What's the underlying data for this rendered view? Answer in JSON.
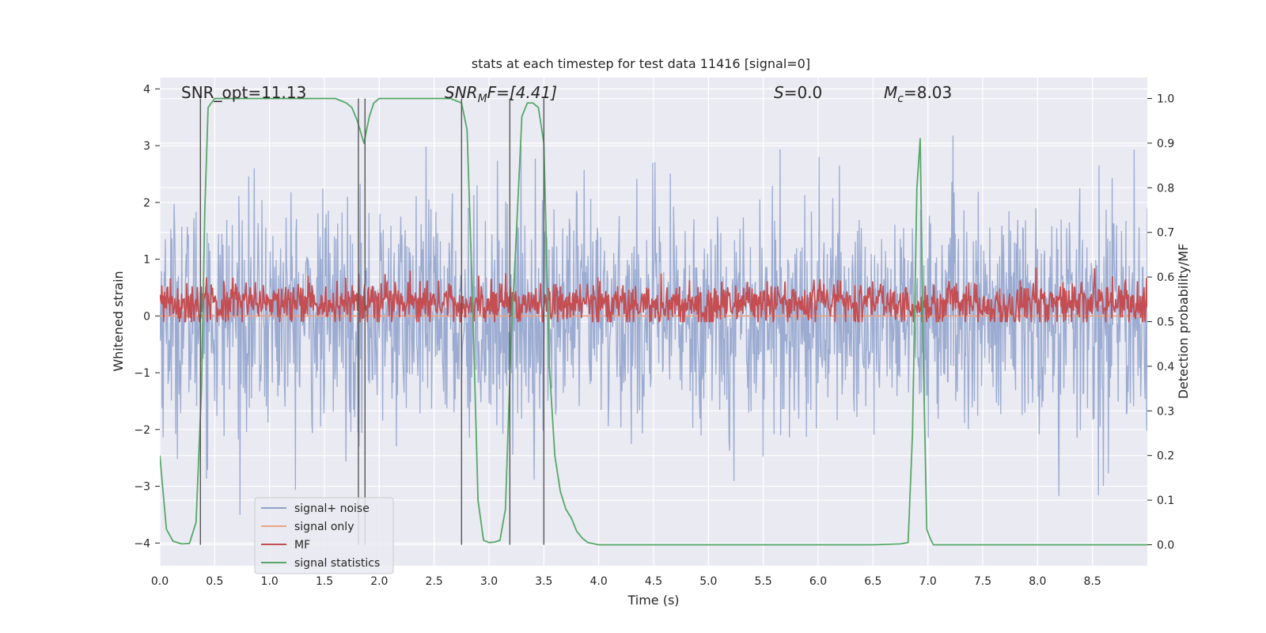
{
  "chart_data": {
    "type": "line",
    "title": "stats at each timestep for test data 11416 [signal=0]",
    "xlabel": "Time (s)",
    "ylabel": "Whitened strain",
    "ylabel_right": "Detection probability/MF",
    "xlim": [
      0.0,
      9.0
    ],
    "ylim": [
      -4.4,
      4.2
    ],
    "ylim_right": [
      -0.047,
      1.047
    ],
    "x_ticks": [
      "0.0",
      "0.5",
      "1.0",
      "1.5",
      "2.0",
      "2.5",
      "3.0",
      "3.5",
      "4.0",
      "4.5",
      "5.0",
      "5.5",
      "6.0",
      "6.5",
      "7.0",
      "7.5",
      "8.0",
      "8.5"
    ],
    "y_ticks": [
      "−4",
      "−3",
      "−2",
      "−1",
      "0",
      "1",
      "2",
      "3",
      "4"
    ],
    "y_ticks_right": [
      "0.0",
      "0.1",
      "0.2",
      "0.3",
      "0.4",
      "0.5",
      "0.6",
      "0.7",
      "0.8",
      "0.9",
      "1.0"
    ],
    "grid": true,
    "legend_position": "lower-left",
    "annotations": {
      "snr_opt": "SNR_opt=11.13",
      "snr_mf_sym": "SNR",
      "snr_mf_sub": "M",
      "snr_mf_rest": "F=[4.41]",
      "s_sym": "S",
      "s_rest": "=0.0",
      "mc_sym": "M",
      "mc_sub": "c",
      "mc_rest": "=8.03"
    },
    "vertical_markers": [
      0.37,
      1.81,
      1.87,
      2.75,
      3.19,
      3.5
    ],
    "series": [
      {
        "name": "signal+ noise",
        "color": "#8da0cb",
        "kind": "noise",
        "sigma": 1.0,
        "range": [
          -4.0,
          4.0
        ],
        "samples": 1800
      },
      {
        "name": "signal only",
        "color": "#e8a487",
        "kind": "flat",
        "value": 0.0
      },
      {
        "name": "MF",
        "color": "#c44e52",
        "axis": "right",
        "kind": "noise",
        "mean": 0.54,
        "sigma": 0.025,
        "range": [
          0.5,
          0.62
        ],
        "samples": 1500
      },
      {
        "name": "signal statistics",
        "color": "#55a868",
        "axis": "right",
        "x": [
          0.0,
          0.06,
          0.12,
          0.2,
          0.27,
          0.33,
          0.38,
          0.41,
          0.44,
          0.47,
          0.5,
          0.55,
          0.65,
          0.8,
          1.0,
          1.2,
          1.4,
          1.6,
          1.7,
          1.75,
          1.8,
          1.86,
          1.91,
          1.95,
          2.0,
          2.1,
          2.3,
          2.5,
          2.65,
          2.75,
          2.8,
          2.85,
          2.9,
          2.95,
          3.0,
          3.05,
          3.1,
          3.15,
          3.2,
          3.25,
          3.3,
          3.35,
          3.4,
          3.45,
          3.5,
          3.55,
          3.6,
          3.65,
          3.7,
          3.75,
          3.8,
          3.85,
          3.9,
          4.0,
          4.5,
          5.0,
          5.5,
          6.0,
          6.5,
          6.75,
          6.82,
          6.86,
          6.9,
          6.93,
          6.96,
          6.99,
          7.02,
          7.05,
          7.1,
          7.5,
          8.0,
          8.5,
          9.0
        ],
        "values": [
          0.2,
          0.035,
          0.008,
          0.002,
          0.003,
          0.05,
          0.35,
          0.75,
          0.98,
          0.99,
          1.0,
          1.0,
          1.0,
          1.0,
          1.0,
          1.0,
          1.0,
          1.0,
          0.99,
          0.98,
          0.95,
          0.9,
          0.96,
          0.99,
          1.0,
          1.0,
          1.0,
          1.0,
          1.0,
          0.99,
          0.93,
          0.55,
          0.1,
          0.01,
          0.005,
          0.006,
          0.01,
          0.08,
          0.45,
          0.7,
          0.96,
          0.99,
          0.99,
          0.98,
          0.9,
          0.4,
          0.2,
          0.12,
          0.08,
          0.06,
          0.03,
          0.015,
          0.005,
          0.0,
          0.0,
          0.0,
          0.0,
          0.0,
          0.0,
          0.002,
          0.005,
          0.25,
          0.8,
          0.91,
          0.4,
          0.035,
          0.015,
          0.0,
          0.0,
          0.0,
          0.0,
          0.0,
          0.0
        ]
      }
    ]
  }
}
